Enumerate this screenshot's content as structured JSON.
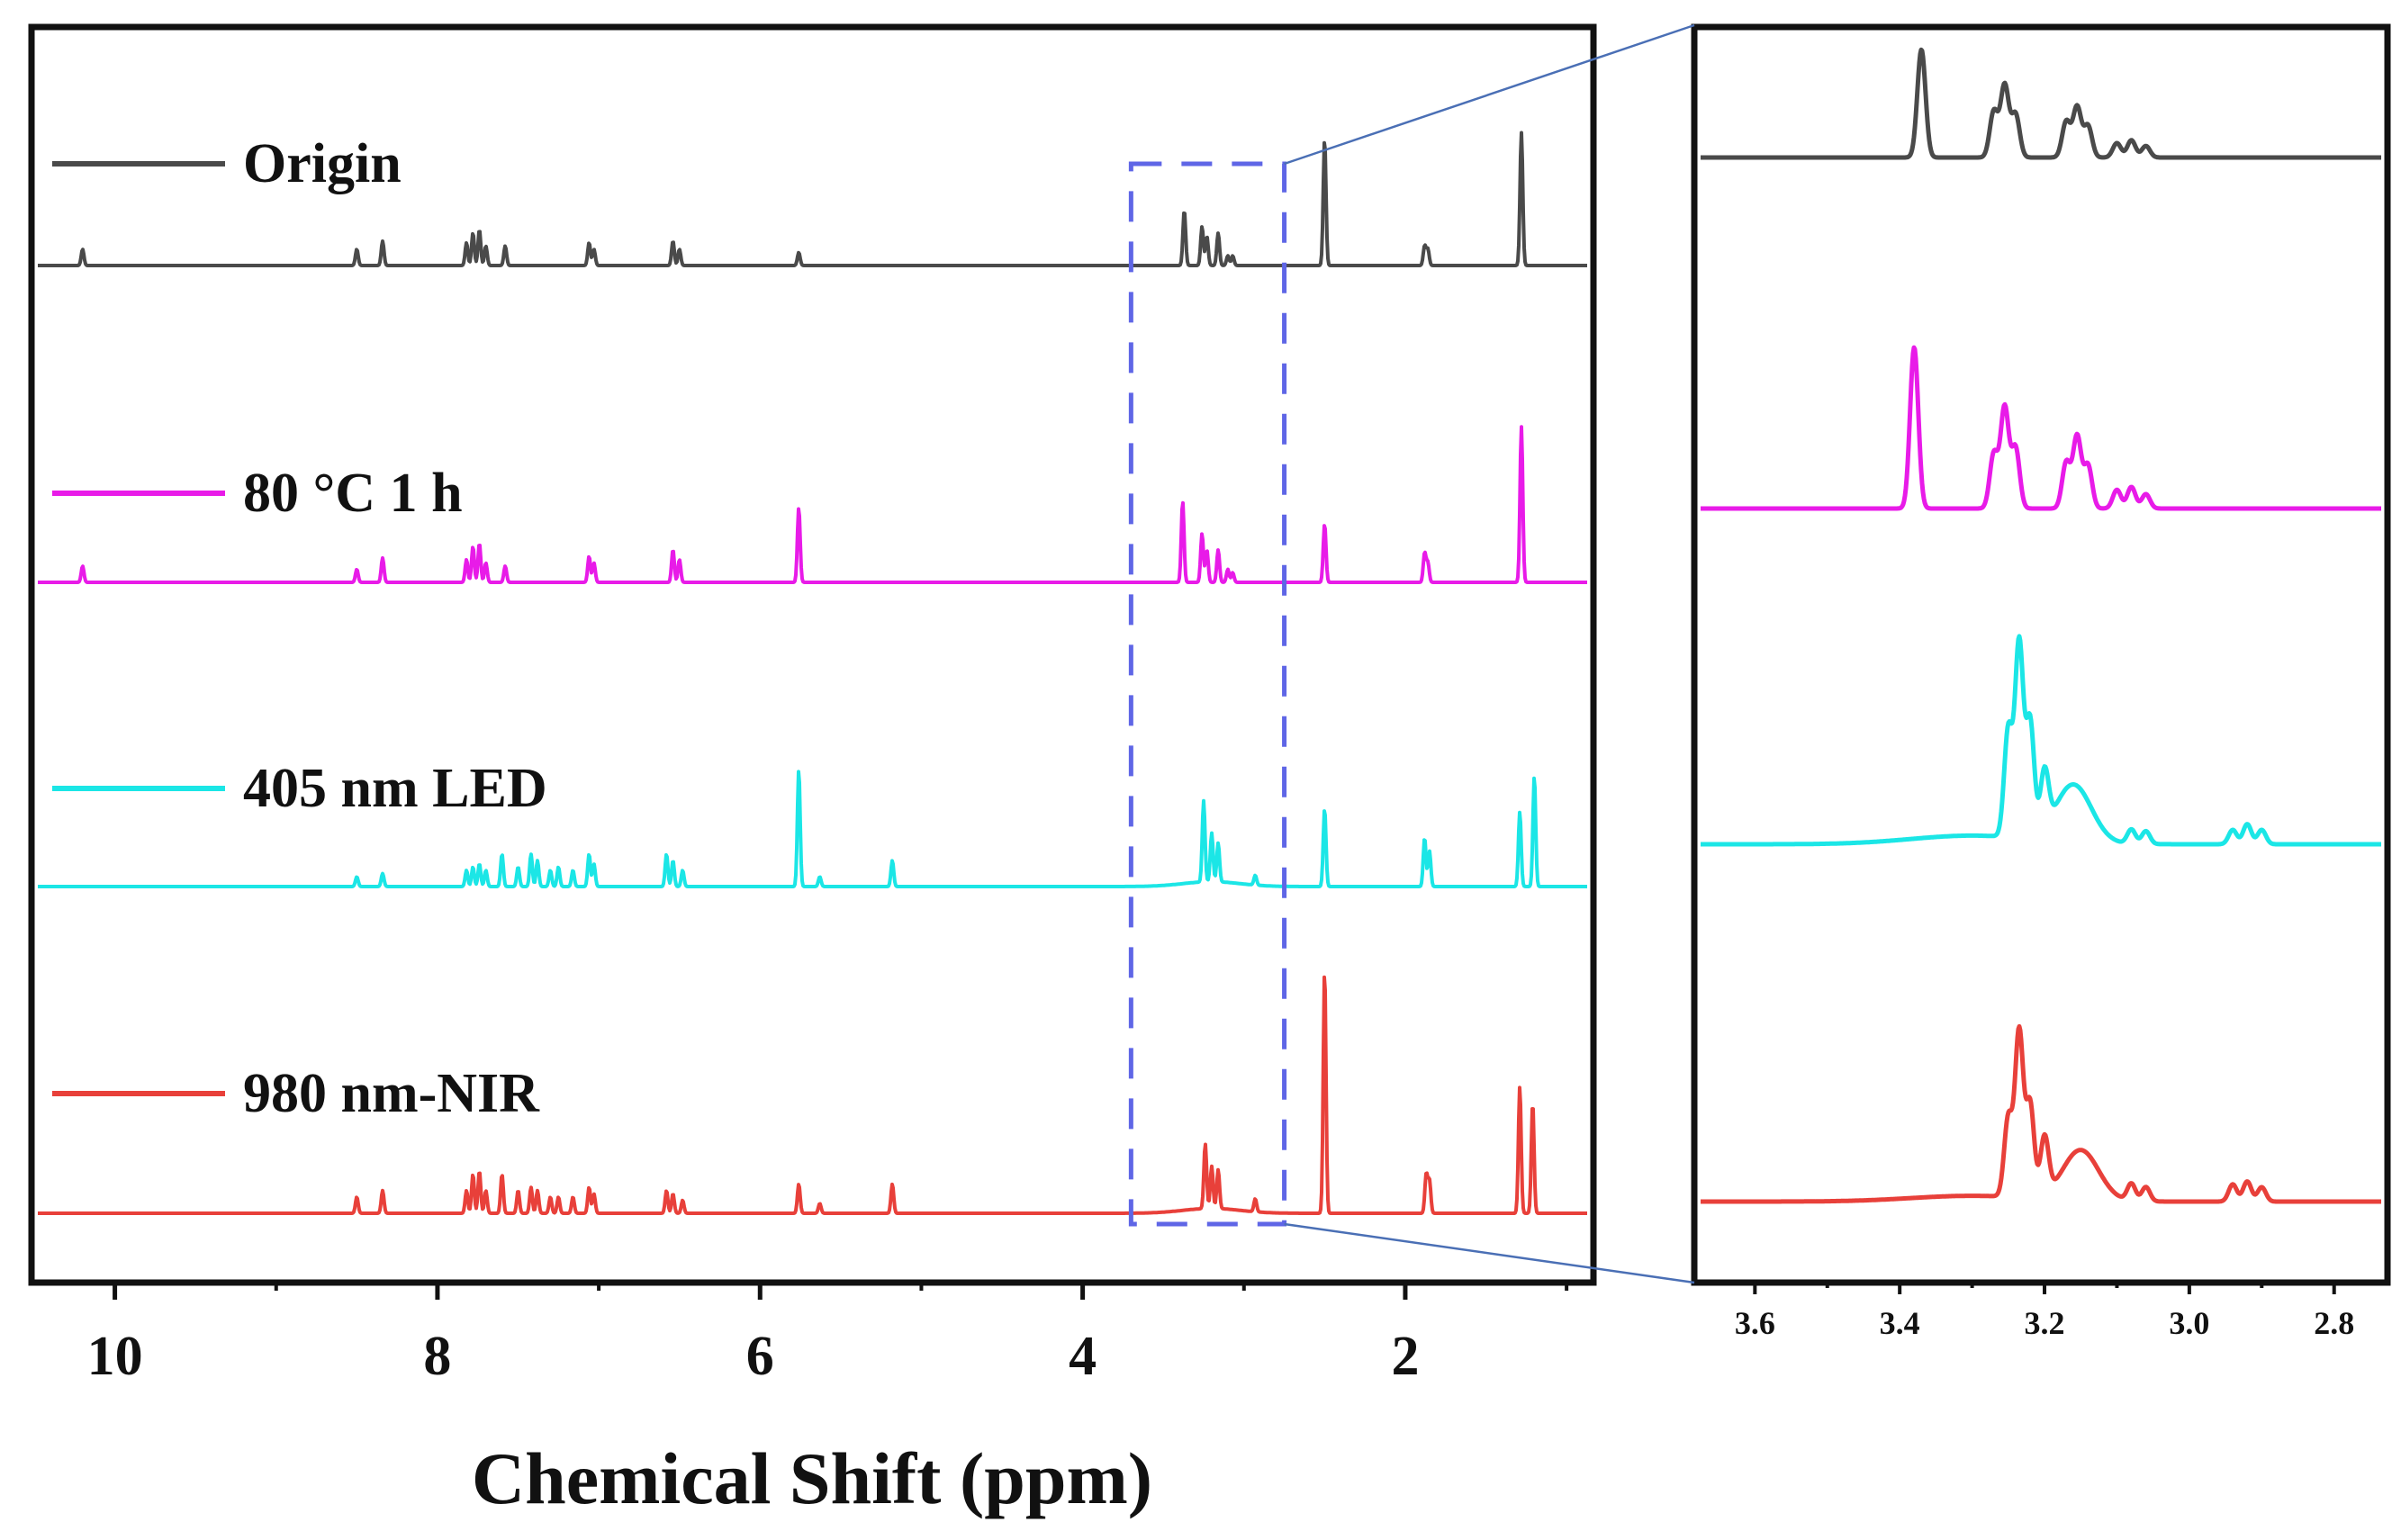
{
  "chart_data": [
    {
      "type": "line",
      "title": "",
      "xlabel": "Chemical Shift (ppm)",
      "ylabel": "",
      "xlim": [
        10.5,
        0.85
      ],
      "x_ticks": [
        10,
        8,
        6,
        4,
        2
      ],
      "x_tick_labels": [
        "10",
        "8",
        "6",
        "4",
        "2"
      ],
      "grid": false,
      "legend_placement": "left, beside each trace",
      "series": [
        {
          "name": "Origin",
          "color": "#4a4a4a",
          "peaks": [
            {
              "ppm": 10.2,
              "height": 0.1
            },
            {
              "ppm": 8.5,
              "height": 0.1
            },
            {
              "ppm": 8.34,
              "height": 0.15
            },
            {
              "ppm": 7.82,
              "height": 0.14
            },
            {
              "ppm": 7.78,
              "height": 0.2
            },
            {
              "ppm": 7.74,
              "height": 0.22
            },
            {
              "ppm": 7.7,
              "height": 0.12
            },
            {
              "ppm": 7.58,
              "height": 0.12
            },
            {
              "ppm": 7.06,
              "height": 0.14
            },
            {
              "ppm": 7.03,
              "height": 0.1
            },
            {
              "ppm": 6.54,
              "height": 0.15
            },
            {
              "ppm": 6.5,
              "height": 0.1
            },
            {
              "ppm": 5.76,
              "height": 0.08
            },
            {
              "ppm": 3.37,
              "height": 0.34
            },
            {
              "ppm": 3.26,
              "height": 0.24
            },
            {
              "ppm": 3.23,
              "height": 0.18
            },
            {
              "ppm": 3.16,
              "height": 0.2
            },
            {
              "ppm": 3.1,
              "height": 0.06
            },
            {
              "ppm": 3.07,
              "height": 0.06
            },
            {
              "ppm": 2.5,
              "height": 0.78
            },
            {
              "ppm": 1.88,
              "height": 0.12
            },
            {
              "ppm": 1.86,
              "height": 0.1
            },
            {
              "ppm": 1.28,
              "height": 0.82
            }
          ]
        },
        {
          "name": "80 °C 1 h",
          "color": "#e81be8",
          "peaks": [
            {
              "ppm": 10.2,
              "height": 0.1
            },
            {
              "ppm": 8.5,
              "height": 0.08
            },
            {
              "ppm": 8.34,
              "height": 0.15
            },
            {
              "ppm": 7.82,
              "height": 0.14
            },
            {
              "ppm": 7.78,
              "height": 0.22
            },
            {
              "ppm": 7.74,
              "height": 0.24
            },
            {
              "ppm": 7.7,
              "height": 0.12
            },
            {
              "ppm": 7.58,
              "height": 0.1
            },
            {
              "ppm": 7.06,
              "height": 0.16
            },
            {
              "ppm": 7.03,
              "height": 0.12
            },
            {
              "ppm": 6.54,
              "height": 0.2
            },
            {
              "ppm": 6.5,
              "height": 0.14
            },
            {
              "ppm": 5.76,
              "height": 0.46
            },
            {
              "ppm": 3.38,
              "height": 0.5
            },
            {
              "ppm": 3.26,
              "height": 0.3
            },
            {
              "ppm": 3.23,
              "height": 0.2
            },
            {
              "ppm": 3.16,
              "height": 0.2
            },
            {
              "ppm": 3.1,
              "height": 0.08
            },
            {
              "ppm": 3.07,
              "height": 0.06
            },
            {
              "ppm": 2.5,
              "height": 0.36
            },
            {
              "ppm": 1.88,
              "height": 0.18
            },
            {
              "ppm": 1.86,
              "height": 0.12
            },
            {
              "ppm": 1.28,
              "height": 0.96
            }
          ]
        },
        {
          "name": "405 nm LED",
          "color": "#1be6e6",
          "peaks": [
            {
              "ppm": 8.5,
              "height": 0.06
            },
            {
              "ppm": 8.34,
              "height": 0.08
            },
            {
              "ppm": 7.82,
              "height": 0.1
            },
            {
              "ppm": 7.78,
              "height": 0.12
            },
            {
              "ppm": 7.74,
              "height": 0.14
            },
            {
              "ppm": 7.7,
              "height": 0.1
            },
            {
              "ppm": 7.6,
              "height": 0.2
            },
            {
              "ppm": 7.5,
              "height": 0.12
            },
            {
              "ppm": 7.42,
              "height": 0.2
            },
            {
              "ppm": 7.38,
              "height": 0.16
            },
            {
              "ppm": 7.3,
              "height": 0.1
            },
            {
              "ppm": 7.25,
              "height": 0.12
            },
            {
              "ppm": 7.16,
              "height": 0.1
            },
            {
              "ppm": 7.06,
              "height": 0.2
            },
            {
              "ppm": 7.03,
              "height": 0.14
            },
            {
              "ppm": 6.58,
              "height": 0.2
            },
            {
              "ppm": 6.54,
              "height": 0.16
            },
            {
              "ppm": 6.48,
              "height": 0.1
            },
            {
              "ppm": 5.76,
              "height": 0.72
            },
            {
              "ppm": 5.63,
              "height": 0.06
            },
            {
              "ppm": 5.18,
              "height": 0.16
            },
            {
              "ppm": 3.25,
              "height": 0.5
            },
            {
              "ppm": 3.2,
              "height": 0.3
            },
            {
              "ppm": 3.16,
              "height": 0.24
            },
            {
              "ppm": 2.93,
              "height": 0.06
            },
            {
              "ppm": 2.5,
              "height": 0.48
            },
            {
              "ppm": 1.88,
              "height": 0.3
            },
            {
              "ppm": 1.85,
              "height": 0.22
            },
            {
              "ppm": 1.29,
              "height": 0.46
            },
            {
              "ppm": 1.2,
              "height": 0.68
            }
          ]
        },
        {
          "name": "980 nm-NIR",
          "color": "#e8403a",
          "peaks": [
            {
              "ppm": 8.5,
              "height": 0.1
            },
            {
              "ppm": 8.34,
              "height": 0.14
            },
            {
              "ppm": 7.82,
              "height": 0.14
            },
            {
              "ppm": 7.78,
              "height": 0.24
            },
            {
              "ppm": 7.74,
              "height": 0.26
            },
            {
              "ppm": 7.7,
              "height": 0.14
            },
            {
              "ppm": 7.6,
              "height": 0.24
            },
            {
              "ppm": 7.5,
              "height": 0.14
            },
            {
              "ppm": 7.42,
              "height": 0.16
            },
            {
              "ppm": 7.38,
              "height": 0.14
            },
            {
              "ppm": 7.3,
              "height": 0.1
            },
            {
              "ppm": 7.25,
              "height": 0.1
            },
            {
              "ppm": 7.16,
              "height": 0.1
            },
            {
              "ppm": 7.06,
              "height": 0.16
            },
            {
              "ppm": 7.03,
              "height": 0.12
            },
            {
              "ppm": 6.58,
              "height": 0.14
            },
            {
              "ppm": 6.54,
              "height": 0.12
            },
            {
              "ppm": 6.48,
              "height": 0.08
            },
            {
              "ppm": 5.76,
              "height": 0.18
            },
            {
              "ppm": 5.63,
              "height": 0.06
            },
            {
              "ppm": 5.18,
              "height": 0.18
            },
            {
              "ppm": 3.24,
              "height": 0.4
            },
            {
              "ppm": 3.2,
              "height": 0.26
            },
            {
              "ppm": 3.16,
              "height": 0.24
            },
            {
              "ppm": 2.93,
              "height": 0.08
            },
            {
              "ppm": 2.5,
              "height": 1.5
            },
            {
              "ppm": 1.87,
              "height": 0.24
            },
            {
              "ppm": 1.85,
              "height": 0.2
            },
            {
              "ppm": 1.29,
              "height": 0.78
            },
            {
              "ppm": 1.21,
              "height": 0.68
            }
          ]
        }
      ],
      "highlight_region": {
        "x_range": [
          3.7,
          2.75
        ],
        "style": "dashed rectangle",
        "color": "#5f66e6"
      }
    },
    {
      "type": "line",
      "title": "",
      "xlabel": "",
      "ylabel": "",
      "xlim": [
        3.68,
        2.73
      ],
      "x_ticks": [
        3.6,
        3.4,
        3.2,
        3.0,
        2.8
      ],
      "x_tick_labels": [
        "3.6",
        "3.4",
        "3.2",
        "3.0",
        "2.8"
      ],
      "grid": false,
      "description": "Zoomed view of the 3.7–2.75 ppm region",
      "series": [
        {
          "name": "Origin",
          "color": "#4a4a4a",
          "baseline_tilt": 0.0,
          "hump": {
            "center": 3.15,
            "height": 0.0
          },
          "peaks": [
            {
              "ppm": 3.37,
              "height": 0.75
            },
            {
              "ppm": 3.27,
              "height": 0.32
            },
            {
              "ppm": 3.255,
              "height": 0.5
            },
            {
              "ppm": 3.24,
              "height": 0.3
            },
            {
              "ppm": 3.17,
              "height": 0.25
            },
            {
              "ppm": 3.155,
              "height": 0.35
            },
            {
              "ppm": 3.14,
              "height": 0.22
            },
            {
              "ppm": 3.1,
              "height": 0.1
            },
            {
              "ppm": 3.08,
              "height": 0.12
            },
            {
              "ppm": 3.06,
              "height": 0.08
            }
          ]
        },
        {
          "name": "80 °C 1 h",
          "color": "#e81be8",
          "baseline_tilt": 0.0,
          "hump": {
            "center": 3.15,
            "height": 0.0
          },
          "peaks": [
            {
              "ppm": 3.38,
              "height": 1.12
            },
            {
              "ppm": 3.27,
              "height": 0.38
            },
            {
              "ppm": 3.255,
              "height": 0.7
            },
            {
              "ppm": 3.24,
              "height": 0.42
            },
            {
              "ppm": 3.17,
              "height": 0.32
            },
            {
              "ppm": 3.155,
              "height": 0.5
            },
            {
              "ppm": 3.14,
              "height": 0.3
            },
            {
              "ppm": 3.1,
              "height": 0.13
            },
            {
              "ppm": 3.08,
              "height": 0.15
            },
            {
              "ppm": 3.06,
              "height": 0.1
            }
          ]
        },
        {
          "name": "405 nm LED",
          "color": "#1be6e6",
          "baseline_tilt": 0.06,
          "hump": {
            "center": 3.16,
            "height": 0.4
          },
          "peaks": [
            {
              "ppm": 3.25,
              "height": 0.75
            },
            {
              "ppm": 3.235,
              "height": 1.35
            },
            {
              "ppm": 3.22,
              "height": 0.8
            },
            {
              "ppm": 3.2,
              "height": 0.4
            },
            {
              "ppm": 3.08,
              "height": 0.1
            },
            {
              "ppm": 3.06,
              "height": 0.09
            },
            {
              "ppm": 2.94,
              "height": 0.1
            },
            {
              "ppm": 2.92,
              "height": 0.14
            },
            {
              "ppm": 2.9,
              "height": 0.1
            }
          ]
        },
        {
          "name": "980 nm-NIR",
          "color": "#e8403a",
          "baseline_tilt": 0.04,
          "hump": {
            "center": 3.15,
            "height": 0.35
          },
          "peaks": [
            {
              "ppm": 3.25,
              "height": 0.55
            },
            {
              "ppm": 3.235,
              "height": 1.15
            },
            {
              "ppm": 3.22,
              "height": 0.65
            },
            {
              "ppm": 3.2,
              "height": 0.4
            },
            {
              "ppm": 3.08,
              "height": 0.12
            },
            {
              "ppm": 3.06,
              "height": 0.1
            },
            {
              "ppm": 2.94,
              "height": 0.12
            },
            {
              "ppm": 2.92,
              "height": 0.14
            },
            {
              "ppm": 2.9,
              "height": 0.1
            }
          ]
        }
      ]
    }
  ],
  "colors": {
    "frame": "#111111",
    "highlight_box": "#5f66e6",
    "connector": "#4a6fb5"
  }
}
